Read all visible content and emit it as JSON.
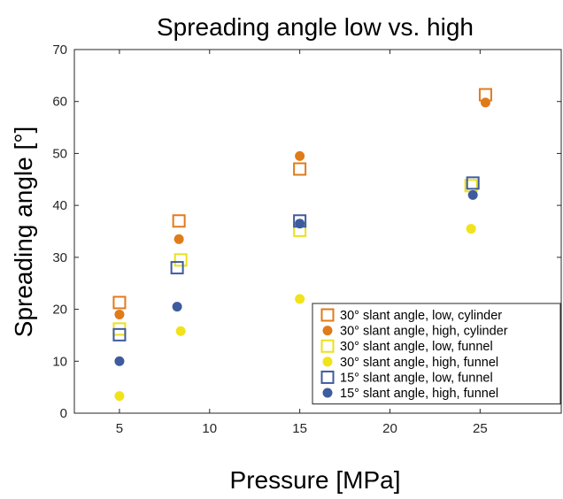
{
  "chart_data": {
    "type": "scatter",
    "title": "Spreading angle low vs. high",
    "xlabel": "Pressure [MPa]",
    "ylabel": "Spreading angle [°]",
    "xlim": [
      2.5,
      29.5
    ],
    "ylim": [
      0,
      70
    ],
    "xticks": [
      5,
      10,
      15,
      20,
      25
    ],
    "yticks": [
      0,
      10,
      20,
      30,
      40,
      50,
      60,
      70
    ],
    "grid": false,
    "legend_position": "bottom-right",
    "series": [
      {
        "name": "30° slant angle, low, cylinder",
        "marker": "square-open",
        "color": "#E07B1A",
        "x": [
          5,
          8.3,
          15,
          25.3
        ],
        "y": [
          21.3,
          37,
          47,
          61.3
        ]
      },
      {
        "name": "30° slant angle, high, cylinder",
        "marker": "circle-filled",
        "color": "#E07B1A",
        "x": [
          5,
          8.3,
          15,
          25.3
        ],
        "y": [
          19,
          33.5,
          49.5,
          59.8
        ]
      },
      {
        "name": "30° slant angle, low, funnel",
        "marker": "square-open",
        "color": "#E9E21B",
        "x": [
          5,
          8.4,
          15,
          24.5
        ],
        "y": [
          16.2,
          29.5,
          35.2,
          43.8
        ]
      },
      {
        "name": "30° slant angle, high, funnel",
        "marker": "circle-filled",
        "color": "#F2E21A",
        "x": [
          5,
          8.4,
          15,
          24.5
        ],
        "y": [
          3.3,
          15.8,
          22,
          35.5
        ]
      },
      {
        "name": "15° slant angle, low, funnel",
        "marker": "square-open",
        "color": "#3E5B9E",
        "x": [
          5,
          8.2,
          15,
          24.6
        ],
        "y": [
          15.1,
          28,
          37,
          44.3
        ]
      },
      {
        "name": "15° slant angle, high, funnel",
        "marker": "circle-filled",
        "color": "#3E5B9E",
        "x": [
          5,
          8.2,
          15,
          24.6
        ],
        "y": [
          10,
          20.5,
          36.5,
          42
        ]
      }
    ]
  }
}
